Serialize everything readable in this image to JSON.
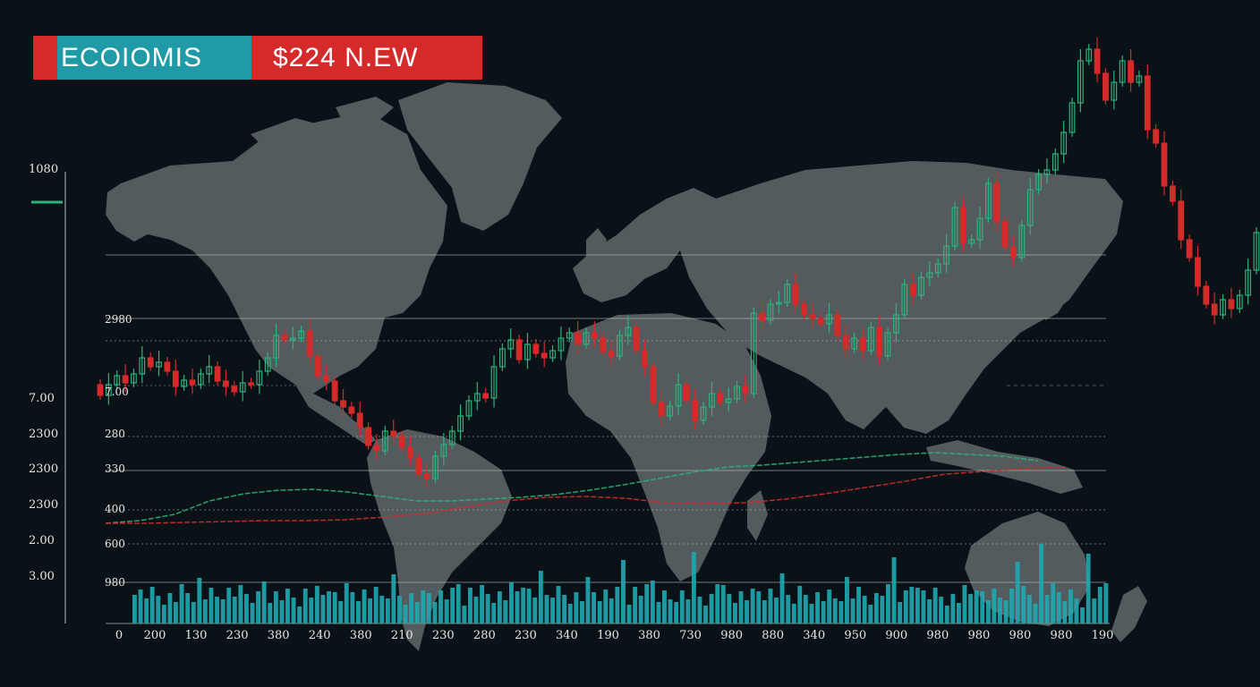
{
  "banner": {
    "left": "ECOIOMIS",
    "right": "$224  N.EW"
  },
  "colors": {
    "background": "#0b1217",
    "land": "#545b5f",
    "bull": "#2fb07c",
    "bear": "#d42a2a",
    "volume": "#1fa8b0",
    "grid": "#c8c8c8",
    "banner_cyan": "#1f9aa6",
    "banner_red": "#d42a2a"
  },
  "chart_data": {
    "type": "candlestick",
    "background": "world-map",
    "grid": true,
    "outer_axis_labels": [
      "1080",
      "7.00",
      "2300",
      "2300",
      "2300",
      "2.00",
      "3.00"
    ],
    "inner_axis_labels": [
      "2980",
      "7.00",
      "280",
      "330",
      "400",
      "600",
      "980"
    ],
    "x_tick_labels": [
      "0",
      "200",
      "130",
      "230",
      "380",
      "240",
      "380",
      "210",
      "230",
      "280",
      "230",
      "340",
      "190",
      "380",
      "730",
      "980",
      "880",
      "340",
      "950",
      "900",
      "980",
      "980",
      "980",
      "980",
      "190"
    ],
    "candles": [
      [
        430,
        442
      ],
      [
        442,
        430
      ],
      [
        430,
        420
      ],
      [
        420,
        428
      ],
      [
        428,
        418
      ],
      [
        418,
        400
      ],
      [
        400,
        410
      ],
      [
        410,
        405
      ],
      [
        405,
        415
      ],
      [
        415,
        432
      ],
      [
        432,
        425
      ],
      [
        425,
        430
      ],
      [
        430,
        418
      ],
      [
        418,
        410
      ],
      [
        410,
        426
      ],
      [
        426,
        432
      ],
      [
        432,
        438
      ],
      [
        438,
        428
      ],
      [
        428,
        430
      ],
      [
        430,
        415
      ],
      [
        415,
        400
      ],
      [
        400,
        375
      ],
      [
        375,
        380
      ],
      [
        380,
        378
      ],
      [
        378,
        370
      ],
      [
        370,
        398
      ],
      [
        398,
        420
      ],
      [
        420,
        426
      ],
      [
        426,
        448
      ],
      [
        448,
        455
      ],
      [
        455,
        462
      ],
      [
        462,
        478
      ],
      [
        478,
        498
      ],
      [
        498,
        504
      ],
      [
        504,
        482
      ],
      [
        482,
        488
      ],
      [
        488,
        500
      ],
      [
        500,
        512
      ],
      [
        512,
        530
      ],
      [
        530,
        535
      ],
      [
        535,
        510
      ],
      [
        510,
        497
      ],
      [
        497,
        482
      ],
      [
        482,
        465
      ],
      [
        465,
        448
      ],
      [
        448,
        440
      ],
      [
        440,
        445
      ],
      [
        445,
        410
      ],
      [
        410,
        390
      ],
      [
        390,
        380
      ],
      [
        380,
        402
      ],
      [
        402,
        385
      ],
      [
        385,
        395
      ],
      [
        395,
        400
      ],
      [
        400,
        392
      ],
      [
        392,
        378
      ],
      [
        378,
        372
      ],
      [
        372,
        385
      ],
      [
        385,
        372
      ],
      [
        372,
        378
      ],
      [
        378,
        393
      ],
      [
        393,
        398
      ],
      [
        398,
        375
      ],
      [
        375,
        366
      ],
      [
        366,
        392
      ],
      [
        392,
        410
      ],
      [
        410,
        450
      ],
      [
        450,
        465
      ],
      [
        465,
        454
      ],
      [
        454,
        430
      ],
      [
        430,
        448
      ],
      [
        448,
        470
      ],
      [
        470,
        455
      ],
      [
        455,
        440
      ],
      [
        440,
        450
      ],
      [
        450,
        446
      ],
      [
        446,
        432
      ],
      [
        432,
        440
      ],
      [
        440,
        350
      ],
      [
        350,
        358
      ],
      [
        358,
        340
      ],
      [
        340,
        338
      ],
      [
        338,
        318
      ],
      [
        318,
        340
      ],
      [
        340,
        352
      ],
      [
        352,
        356
      ],
      [
        356,
        362
      ],
      [
        362,
        352
      ],
      [
        352,
        375
      ],
      [
        375,
        390
      ],
      [
        390,
        378
      ],
      [
        378,
        392
      ],
      [
        392,
        366
      ],
      [
        366,
        398
      ],
      [
        398,
        372
      ],
      [
        372,
        352
      ],
      [
        352,
        318
      ],
      [
        318,
        330
      ],
      [
        330,
        310
      ],
      [
        310,
        305
      ],
      [
        305,
        295
      ],
      [
        295,
        275
      ],
      [
        275,
        232
      ],
      [
        232,
        272
      ],
      [
        272,
        268
      ],
      [
        268,
        244
      ],
      [
        244,
        205
      ],
      [
        205,
        248
      ],
      [
        248,
        276
      ],
      [
        276,
        288
      ],
      [
        288,
        252
      ],
      [
        252,
        212
      ],
      [
        212,
        195
      ],
      [
        195,
        190
      ],
      [
        190,
        172
      ],
      [
        172,
        148
      ],
      [
        148,
        115
      ],
      [
        115,
        68
      ],
      [
        68,
        55
      ],
      [
        55,
        82
      ],
      [
        82,
        112
      ],
      [
        112,
        92
      ],
      [
        92,
        68
      ],
      [
        68,
        92
      ],
      [
        92,
        85
      ],
      [
        85,
        145
      ],
      [
        145,
        160
      ],
      [
        160,
        208
      ],
      [
        208,
        225
      ],
      [
        225,
        268
      ],
      [
        268,
        288
      ],
      [
        288,
        320
      ],
      [
        320,
        340
      ],
      [
        340,
        352
      ],
      [
        352,
        335
      ],
      [
        335,
        345
      ],
      [
        345,
        330
      ],
      [
        330,
        302
      ],
      [
        302,
        260
      ]
    ],
    "moving_average_green": [
      585,
      582,
      575,
      560,
      552,
      548,
      547,
      550,
      555,
      560,
      560,
      558,
      556,
      553,
      548,
      542,
      535,
      528,
      522,
      520,
      517,
      514,
      511,
      508,
      506,
      508,
      510,
      515
    ],
    "moving_average_red": [
      585,
      585,
      584,
      583,
      582,
      582,
      581,
      578,
      574,
      567,
      560,
      556,
      555,
      557,
      562,
      563,
      562,
      558,
      552,
      545,
      538,
      530,
      527,
      524,
      522
    ]
  }
}
